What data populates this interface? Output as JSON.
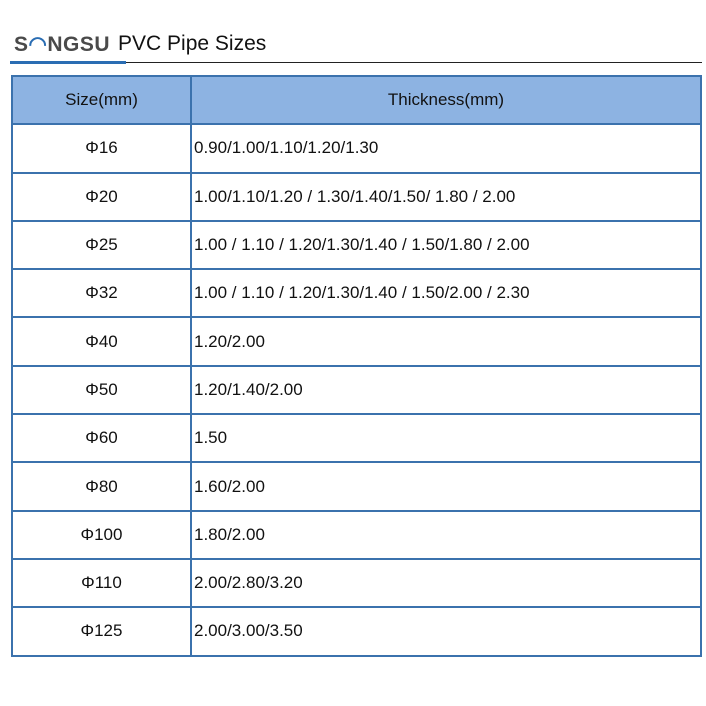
{
  "header": {
    "logo": "SONGSU",
    "title": "PVC Pipe Sizes"
  },
  "colors": {
    "accent": "#2a6db3",
    "header_bg": "#8db3e2",
    "border": "#3b72ad"
  },
  "table": {
    "columns": [
      "Size(mm)",
      "Thickness(mm)"
    ],
    "rows": [
      [
        "Φ16",
        "0.90/1.00/1.10/1.20/1.30"
      ],
      [
        "Φ20",
        "1.00/1.10/1.20 / 1.30/1.40/1.50/ 1.80 / 2.00"
      ],
      [
        "Φ25",
        "1.00 / 1.10 / 1.20/1.30/1.40 / 1.50/1.80 / 2.00"
      ],
      [
        "Φ32",
        "1.00 / 1.10 / 1.20/1.30/1.40 / 1.50/2.00 / 2.30"
      ],
      [
        "Φ40",
        "1.20/2.00"
      ],
      [
        "Φ50",
        "1.20/1.40/2.00"
      ],
      [
        "Φ60",
        "1.50"
      ],
      [
        "Φ80",
        "1.60/2.00"
      ],
      [
        "Φ100",
        "1.80/2.00"
      ],
      [
        "Φ110",
        "2.00/2.80/3.20"
      ],
      [
        "Φ125",
        "2.00/3.00/3.50"
      ]
    ]
  }
}
